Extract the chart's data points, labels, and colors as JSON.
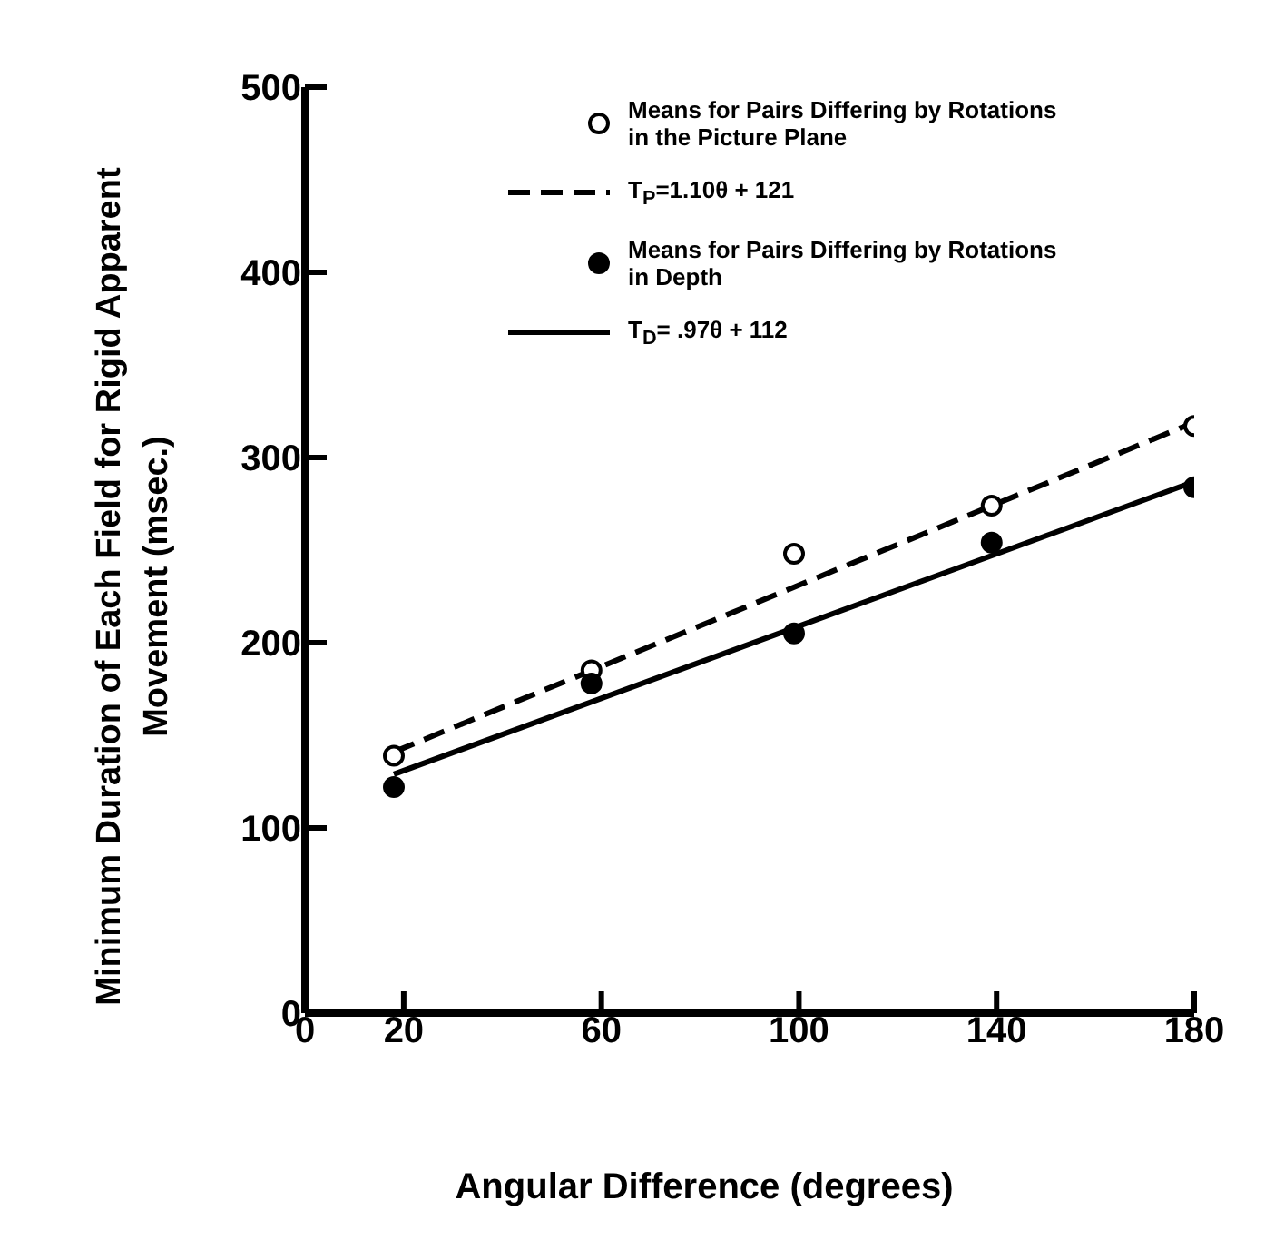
{
  "chart_data": {
    "type": "scatter",
    "xlabel": "Angular Difference (degrees)",
    "ylabel": "Minimum Duration of Each Field for Rigid Apparent Movement (msec.)",
    "xlim": [
      0,
      180
    ],
    "xticks": [
      0,
      20,
      60,
      100,
      140,
      180
    ],
    "ylim": [
      0,
      500
    ],
    "yticks": [
      0,
      100,
      200,
      300,
      400,
      500
    ],
    "grid": false,
    "legend": "top",
    "marker": "circle",
    "series": [
      {
        "name": "Means for Pairs Differing by Rotations in the Picture Plane",
        "color": "#000000",
        "x": [
          18,
          58,
          99,
          139,
          180
        ],
        "values": [
          139,
          185,
          248,
          274,
          317
        ]
      },
      {
        "name": "T$_{P}$=1.10θ + 121",
        "type": "line",
        "line_style": "dashed",
        "marker": "none",
        "color": "#000000",
        "x": [
          18,
          180
        ],
        "values": [
          141,
          319
        ]
      },
      {
        "name": "Means for Pairs Differing by Rotations in Depth",
        "color": "#000000",
        "x": [
          18,
          58,
          99,
          139,
          180
        ],
        "values": [
          122,
          178,
          205,
          254,
          284
        ]
      },
      {
        "name": "T$_{D}$= .97θ + 112",
        "type": "line",
        "line_style": "solid",
        "marker": "none",
        "color": "#000000",
        "x": [
          18,
          180
        ],
        "values": [
          129,
          287
        ]
      }
    ]
  }
}
